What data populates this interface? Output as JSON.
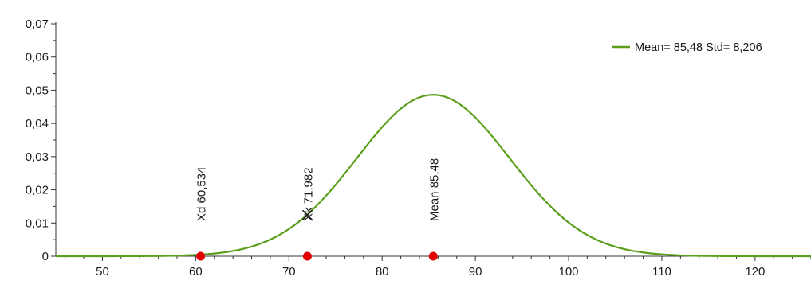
{
  "chart_data": {
    "type": "line",
    "title": "",
    "xlabel": "",
    "ylabel": "",
    "xlim": [
      45,
      126
    ],
    "ylim": [
      0,
      0.07
    ],
    "x_ticks": [
      50,
      60,
      70,
      80,
      90,
      100,
      110,
      120
    ],
    "x_tick_labels": [
      "50",
      "60",
      "70",
      "80",
      "90",
      "100",
      "110",
      "120"
    ],
    "y_ticks": [
      0,
      0.01,
      0.02,
      0.03,
      0.04,
      0.05,
      0.06,
      0.07
    ],
    "y_tick_labels": [
      "0",
      "0,01",
      "0,02",
      "0,03",
      "0,04",
      "0,05",
      "0,06",
      "0,07"
    ],
    "grid": false,
    "legend_position": "top-right",
    "series": [
      {
        "name": "Mean= 85,48 Std= 8,206",
        "color": "#5a9e1a",
        "distribution": "normal",
        "mean": 85.48,
        "std": 8.206
      }
    ],
    "points": [
      {
        "x": 60.534,
        "y": 0,
        "label": "Xd  60,534",
        "marker": "red-dot"
      },
      {
        "x": 71.982,
        "y": 0,
        "label": "Xk  71,982",
        "marker": "red-dot"
      },
      {
        "x": 85.48,
        "y": 0,
        "label": "Mean  85,48",
        "marker": "red-dot"
      }
    ],
    "cross_marker": {
      "x": 71.982,
      "y": 0.0124,
      "icon": "x-mark"
    },
    "marker_color": "#e00000"
  }
}
